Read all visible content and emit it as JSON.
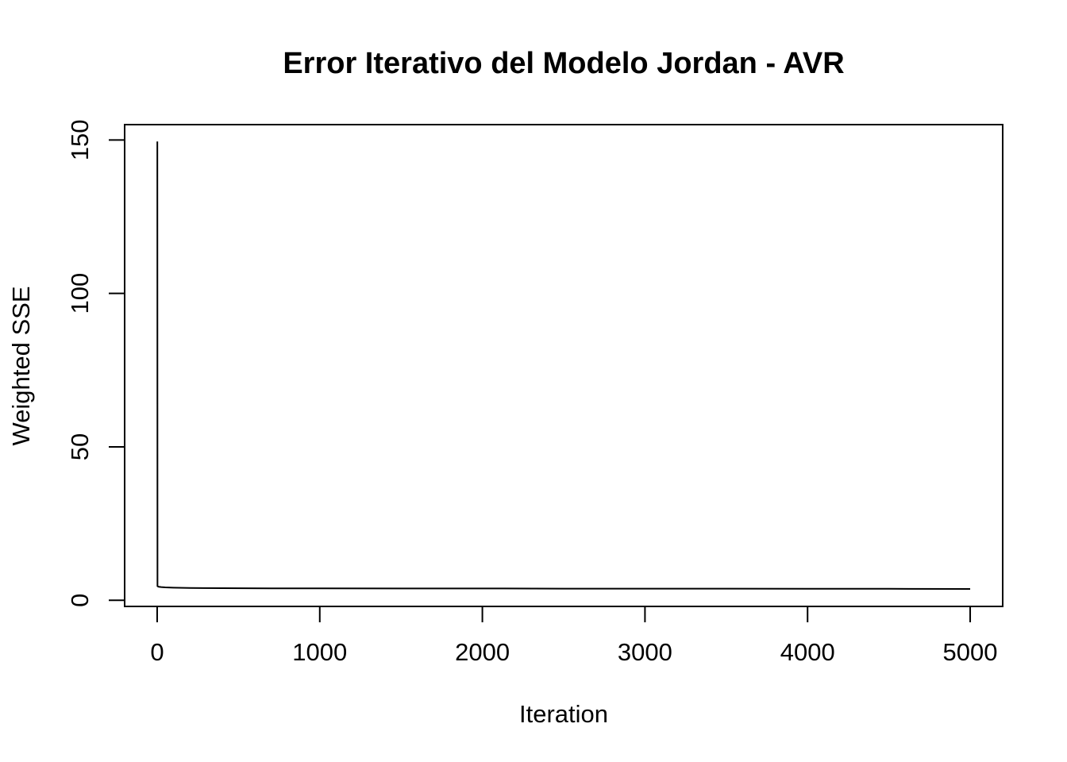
{
  "chart_data": {
    "type": "line",
    "title": "Error Iterativo del Modelo Jordan - AVR",
    "xlabel": "Iteration",
    "ylabel": "Weighted SSE",
    "xlim": [
      -200,
      5200
    ],
    "ylim": [
      -2,
      155
    ],
    "xticks": [
      0,
      1000,
      2000,
      3000,
      4000,
      5000
    ],
    "xtick_labels": [
      "0",
      "1000",
      "2000",
      "3000",
      "4000",
      "5000"
    ],
    "yticks": [
      0,
      50,
      100,
      150
    ],
    "ytick_labels": [
      "0",
      "50",
      "100",
      "150"
    ],
    "grid": false,
    "series": [
      {
        "color": "#000000",
        "x": [
          1,
          2,
          5,
          10,
          25,
          50,
          100,
          200,
          400,
          700,
          1000,
          1500,
          2000,
          2500,
          3000,
          3500,
          4000,
          4500,
          5000
        ],
        "y": [
          149.5,
          4.6,
          4.5,
          4.4,
          4.3,
          4.2,
          4.1,
          4.0,
          3.95,
          3.9,
          3.9,
          3.85,
          3.85,
          3.8,
          3.8,
          3.8,
          3.75,
          3.75,
          3.7
        ]
      }
    ]
  }
}
